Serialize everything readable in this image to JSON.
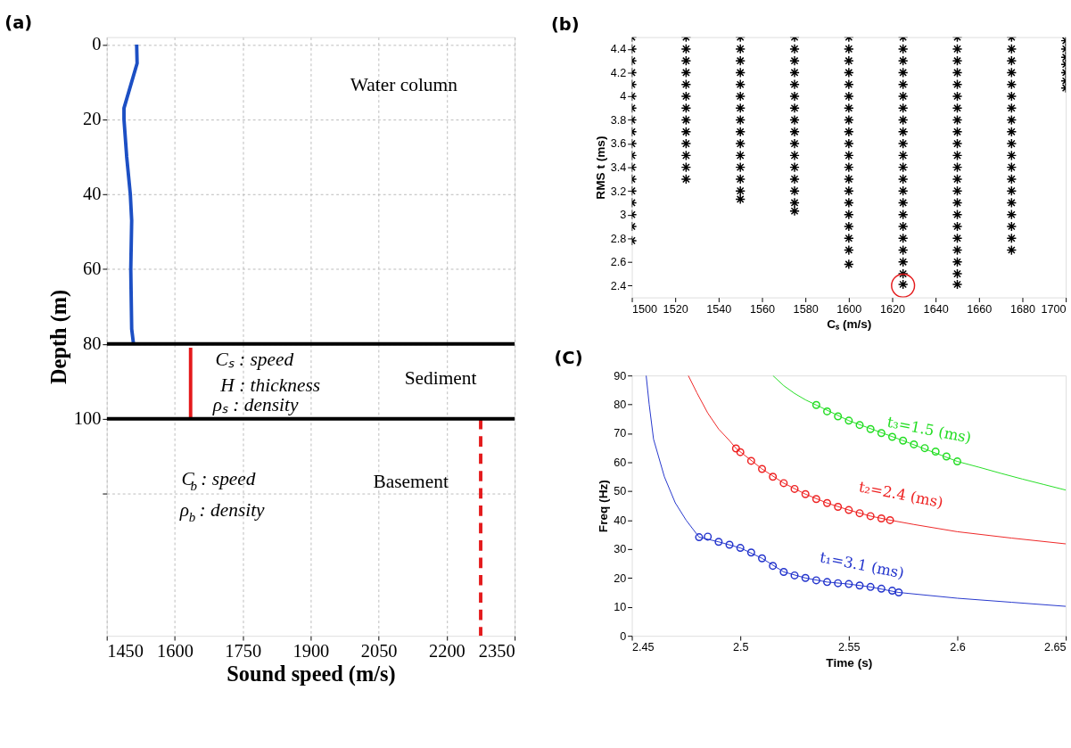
{
  "chart_data": [
    {
      "type": "line",
      "title": "(a)",
      "xlabel": "Sound speed (m/s)",
      "ylabel": "Depth (m)",
      "xlim": [
        1450,
        2350
      ],
      "xticks": [
        1450,
        1600,
        1750,
        1900,
        2050,
        2200,
        2350
      ],
      "ylim": [
        158,
        -2
      ],
      "yticks": [
        0,
        20,
        40,
        60,
        80,
        100,
        {
          "value": 120,
          "label": null
        }
      ],
      "grid": true,
      "series": [
        {
          "color": "#1c4fc4",
          "x": [
            1516,
            1517,
            1488,
            1488,
            1494,
            1502,
            1505,
            1503,
            1505,
            1509
          ],
          "values": [
            0,
            5,
            17,
            20,
            30,
            40,
            47,
            60,
            76,
            80
          ]
        },
        {
          "color": "#e41a1c",
          "x": [
            1635,
            1635
          ],
          "values": [
            81,
            100
          ]
        },
        {
          "color": "#e41a1c",
          "x": [
            2275,
            2275
          ],
          "values": [
            100,
            158
          ],
          "line_style": "dashed"
        },
        {
          "color": "#000000",
          "x": [
            1450,
            2350
          ],
          "values": [
            80,
            80
          ]
        },
        {
          "color": "#000000",
          "x": [
            1450,
            2350
          ],
          "values": [
            100,
            100
          ]
        }
      ],
      "annotations": [
        "Water column",
        "Sediment",
        "Cₛ : speed",
        "H : thickness",
        "ρₛ : density",
        "Basement",
        "C$_{b}$ : speed",
        "ρ$_{b}$ : density"
      ]
    },
    {
      "type": "scatter",
      "title": "(b)",
      "xlabel": "Cₛ (m/s)",
      "ylabel": "RMS t (ms)",
      "xlim": [
        1500,
        1700
      ],
      "xticks": [
        1500,
        1520,
        1540,
        1560,
        1580,
        1600,
        1620,
        1640,
        1660,
        1680,
        1700
      ],
      "ylim": [
        2.3,
        4.5
      ],
      "yticks": [
        2.4,
        2.6,
        2.8,
        3,
        3.2,
        3.4,
        3.6,
        3.8,
        4,
        4.2,
        4.4
      ],
      "marker": "cross",
      "series": [
        {
          "color": "#000000",
          "x": [
            1500,
            1500,
            1500,
            1500,
            1500,
            1500,
            1500,
            1500,
            1500,
            1500,
            1500,
            1500,
            1500,
            1500,
            1500,
            1500,
            1500,
            1500
          ],
          "values": [
            2.78,
            2.9,
            3.0,
            3.1,
            3.2,
            3.3,
            3.4,
            3.5,
            3.6,
            3.7,
            3.8,
            3.9,
            4.0,
            4.1,
            4.2,
            4.3,
            4.4,
            4.5
          ]
        },
        {
          "color": "#000000",
          "x": [
            1525,
            1525,
            1525,
            1525,
            1525,
            1525,
            1525,
            1525,
            1525,
            1525,
            1525,
            1525,
            1525
          ],
          "values": [
            3.3,
            3.4,
            3.5,
            3.6,
            3.7,
            3.8,
            3.9,
            4.0,
            4.1,
            4.2,
            4.3,
            4.4,
            4.5
          ]
        },
        {
          "color": "#000000",
          "x": [
            1550,
            1550,
            1550,
            1550,
            1550,
            1550,
            1550,
            1550,
            1550,
            1550,
            1550,
            1550,
            1550,
            1550,
            1550
          ],
          "values": [
            3.13,
            3.2,
            3.3,
            3.4,
            3.5,
            3.6,
            3.7,
            3.8,
            3.9,
            4.0,
            4.1,
            4.2,
            4.3,
            4.4,
            4.5
          ]
        },
        {
          "color": "#000000",
          "x": [
            1575,
            1575,
            1575,
            1575,
            1575,
            1575,
            1575,
            1575,
            1575,
            1575,
            1575,
            1575,
            1575,
            1575,
            1575,
            1575
          ],
          "values": [
            3.03,
            3.1,
            3.2,
            3.3,
            3.4,
            3.5,
            3.6,
            3.7,
            3.8,
            3.9,
            4.0,
            4.1,
            4.2,
            4.3,
            4.4,
            4.5
          ]
        },
        {
          "color": "#000000",
          "x": [
            1600,
            1600,
            1600,
            1600,
            1600,
            1600,
            1600,
            1600,
            1600,
            1600,
            1600,
            1600,
            1600,
            1600,
            1600,
            1600,
            1600,
            1600,
            1600,
            1600
          ],
          "values": [
            2.58,
            2.7,
            2.8,
            2.9,
            3.0,
            3.1,
            3.2,
            3.3,
            3.4,
            3.5,
            3.6,
            3.7,
            3.8,
            3.9,
            4.0,
            4.1,
            4.2,
            4.3,
            4.4,
            4.5
          ]
        },
        {
          "color": "#000000",
          "x": [
            1625,
            1625,
            1625,
            1625,
            1625,
            1625,
            1625,
            1625,
            1625,
            1625,
            1625,
            1625,
            1625,
            1625,
            1625,
            1625,
            1625,
            1625,
            1625,
            1625,
            1625,
            1625
          ],
          "values": [
            2.41,
            2.5,
            2.6,
            2.7,
            2.8,
            2.9,
            3.0,
            3.1,
            3.2,
            3.3,
            3.4,
            3.5,
            3.6,
            3.7,
            3.8,
            3.9,
            4.0,
            4.1,
            4.2,
            4.3,
            4.4,
            4.5
          ]
        },
        {
          "color": "#000000",
          "x": [
            1650,
            1650,
            1650,
            1650,
            1650,
            1650,
            1650,
            1650,
            1650,
            1650,
            1650,
            1650,
            1650,
            1650,
            1650,
            1650,
            1650,
            1650,
            1650,
            1650,
            1650,
            1650
          ],
          "values": [
            2.41,
            2.5,
            2.6,
            2.7,
            2.8,
            2.9,
            3.0,
            3.1,
            3.2,
            3.3,
            3.4,
            3.5,
            3.6,
            3.7,
            3.8,
            3.9,
            4.0,
            4.1,
            4.2,
            4.3,
            4.4,
            4.5
          ]
        },
        {
          "color": "#000000",
          "x": [
            1675,
            1675,
            1675,
            1675,
            1675,
            1675,
            1675,
            1675,
            1675,
            1675,
            1675,
            1675,
            1675,
            1675,
            1675,
            1675,
            1675,
            1675,
            1675
          ],
          "values": [
            2.7,
            2.8,
            2.9,
            3.0,
            3.1,
            3.2,
            3.3,
            3.4,
            3.5,
            3.6,
            3.7,
            3.8,
            3.9,
            4.0,
            4.1,
            4.2,
            4.3,
            4.4,
            4.5
          ]
        },
        {
          "color": "#000000",
          "x": [
            1700,
            1700,
            1700,
            1700,
            1700,
            1700,
            1700
          ],
          "values": [
            4.07,
            4.13,
            4.2,
            4.27,
            4.33,
            4.4,
            4.47
          ]
        },
        {
          "color": "#e41a1c",
          "marker": "circle",
          "x": [
            1625
          ],
          "values": [
            2.4
          ]
        }
      ]
    },
    {
      "type": "scatter",
      "title": "(C)",
      "xlabel": "Time (s)",
      "ylabel": "Freq (Hz)",
      "xlim": [
        2.45,
        2.65
      ],
      "xticks": [
        2.45,
        2.5,
        2.55,
        2.6,
        2.65
      ],
      "ylim": [
        0,
        90
      ],
      "yticks": [
        0,
        10,
        20,
        30,
        40,
        50,
        60,
        70,
        80,
        90
      ],
      "marker": "circle",
      "series": [
        {
          "color": "#22dd22",
          "x": [
            2.535,
            2.54,
            2.545,
            2.55,
            2.555,
            2.56,
            2.565,
            2.57,
            2.575,
            2.58,
            2.585,
            2.59,
            2.595,
            2.6
          ],
          "values": [
            79.8,
            77.6,
            75.9,
            74.4,
            72.9,
            71.5,
            70.1,
            68.8,
            67.5,
            66.2,
            64.9,
            63.7,
            62.0,
            60.3
          ]
        },
        {
          "color": "#ee2222",
          "x": [
            2.498,
            2.5,
            2.505,
            2.51,
            2.515,
            2.52,
            2.525,
            2.53,
            2.535,
            2.54,
            2.545,
            2.55,
            2.555,
            2.56,
            2.565,
            2.569
          ],
          "values": [
            64.8,
            63.5,
            60.5,
            57.7,
            55.0,
            52.8,
            50.8,
            49.0,
            47.3,
            45.9,
            44.6,
            43.5,
            42.4,
            41.4,
            40.6,
            40.0
          ]
        },
        {
          "color": "#2233cc",
          "x": [
            2.481,
            2.485,
            2.49,
            2.495,
            2.5,
            2.505,
            2.51,
            2.515,
            2.52,
            2.525,
            2.53,
            2.535,
            2.54,
            2.545,
            2.55,
            2.555,
            2.56,
            2.565,
            2.57,
            2.573
          ],
          "values": [
            34.1,
            34.3,
            32.5,
            31.5,
            30.4,
            28.8,
            26.8,
            24.2,
            22.1,
            20.9,
            20.0,
            19.2,
            18.6,
            18.2,
            17.9,
            17.4,
            16.9,
            16.3,
            15.6,
            15.0
          ]
        },
        {
          "type": "line",
          "marker": "none",
          "color": "#22dd22",
          "x": [
            2.515,
            2.52,
            2.525,
            2.53,
            2.535,
            2.55,
            2.575,
            2.6,
            2.61,
            2.62,
            2.63,
            2.64,
            2.65
          ],
          "values": [
            90,
            86.5,
            83.8,
            81.6,
            79.8,
            74.4,
            67.5,
            60.3,
            58.3,
            56.2,
            54.2,
            52.3,
            50.4
          ]
        },
        {
          "type": "line",
          "marker": "none",
          "color": "#ee2222",
          "x": [
            2.476,
            2.48,
            2.485,
            2.49,
            2.495,
            2.498,
            2.51,
            2.52,
            2.53,
            2.54,
            2.55,
            2.56,
            2.569,
            2.58,
            2.6,
            2.625,
            2.65
          ],
          "values": [
            90,
            84,
            77,
            71.5,
            67.5,
            64.8,
            57.7,
            52.8,
            49.0,
            45.9,
            43.5,
            41.4,
            40.0,
            38.5,
            36,
            33.8,
            31.8
          ]
        },
        {
          "type": "line",
          "marker": "none",
          "color": "#2233cc",
          "x": [
            2.4566,
            2.458,
            2.46,
            2.465,
            2.47,
            2.475,
            2.481,
            2.49,
            2.5,
            2.51,
            2.52,
            2.53,
            2.54,
            2.55,
            2.56,
            2.573,
            2.6,
            2.625,
            2.65
          ],
          "values": [
            90,
            80,
            68,
            55,
            46,
            40,
            34.1,
            32.5,
            30.4,
            26.8,
            22.1,
            20.0,
            18.6,
            17.9,
            16.9,
            15.0,
            13,
            11.6,
            10.2
          ]
        }
      ],
      "annotations": [
        "t₃=1.5 (ms)",
        "t₂=2.4 (ms)",
        "t₁=3.1 (ms)"
      ]
    }
  ]
}
